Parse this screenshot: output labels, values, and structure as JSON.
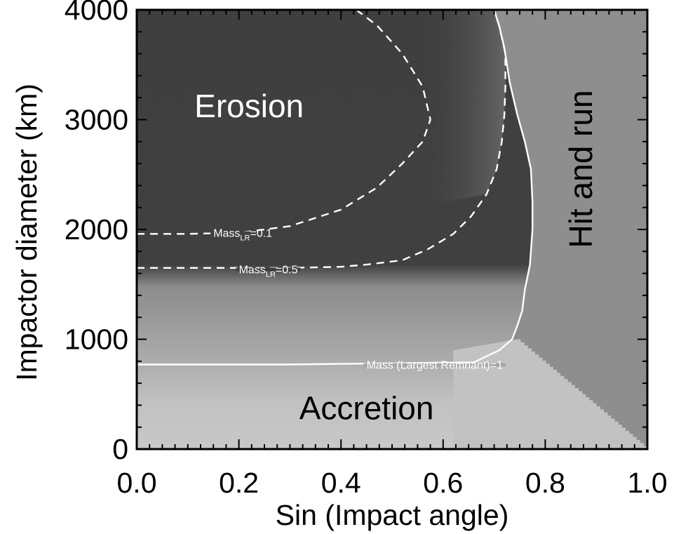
{
  "chart_data": {
    "type": "heatmap",
    "xlabel": "Sin (Impact angle)",
    "ylabel": "Impactor diameter (km)",
    "xlim": [
      0.0,
      1.0
    ],
    "ylim": [
      0,
      4000
    ],
    "xticks": [
      "0.0",
      "0.2",
      "0.4",
      "0.6",
      "0.8",
      "1.0"
    ],
    "yticks": [
      "0",
      "1000",
      "2000",
      "3000",
      "4000"
    ],
    "grid": false,
    "colors": {
      "erosion": "#3f3f3f",
      "accretion": "#c4c4c4",
      "hit_and_run": "#8e8e8e",
      "contour": "#ffffff"
    },
    "regions": [
      {
        "name": "Erosion",
        "x": 0.22,
        "y": 3100,
        "color": "#ffffff"
      },
      {
        "name": "Accretion",
        "x": 0.45,
        "y": 350,
        "color": "#000000"
      },
      {
        "name": "Hit and run",
        "x": 0.875,
        "y": 2550,
        "color": "#000000",
        "rotate": -90
      }
    ],
    "contours": [
      {
        "label_main": "Mass",
        "label_sub": "LR",
        "label_value": "=0.1",
        "style": "dashed",
        "label_at": [
          0.15,
          1970
        ],
        "points": [
          [
            0.0,
            1960
          ],
          [
            0.1,
            1960
          ],
          [
            0.2,
            1970
          ],
          [
            0.3,
            2030
          ],
          [
            0.4,
            2180
          ],
          [
            0.47,
            2380
          ],
          [
            0.52,
            2600
          ],
          [
            0.56,
            2800
          ],
          [
            0.575,
            3000
          ],
          [
            0.56,
            3300
          ],
          [
            0.52,
            3600
          ],
          [
            0.47,
            3860
          ],
          [
            0.43,
            4000
          ]
        ]
      },
      {
        "label_main": "Mass",
        "label_sub": "LR",
        "label_value": "=0.5",
        "style": "dashed",
        "label_at": [
          0.2,
          1640
        ],
        "points": [
          [
            0.0,
            1650
          ],
          [
            0.2,
            1650
          ],
          [
            0.3,
            1650
          ],
          [
            0.4,
            1660
          ],
          [
            0.45,
            1680
          ],
          [
            0.52,
            1720
          ],
          [
            0.57,
            1820
          ],
          [
            0.62,
            1960
          ],
          [
            0.655,
            2120
          ],
          [
            0.685,
            2320
          ],
          [
            0.705,
            2550
          ],
          [
            0.715,
            2800
          ],
          [
            0.72,
            3050
          ],
          [
            0.722,
            3300
          ],
          [
            0.722,
            3600
          ],
          [
            0.71,
            3850
          ],
          [
            0.7,
            4000
          ]
        ]
      },
      {
        "label_main": "Mass (Largest Remnant)=1",
        "label_sub": "",
        "label_value": "",
        "style": "solid",
        "label_at": [
          0.45,
          770
        ],
        "points": [
          [
            0.0,
            770
          ],
          [
            0.29,
            770
          ],
          [
            0.66,
            790
          ],
          [
            0.71,
            900
          ],
          [
            0.735,
            1000
          ],
          [
            0.745,
            1120
          ],
          [
            0.755,
            1260
          ],
          [
            0.76,
            1450
          ],
          [
            0.77,
            1680
          ],
          [
            0.775,
            2000
          ],
          [
            0.775,
            2250
          ],
          [
            0.772,
            2550
          ],
          [
            0.76,
            2800
          ],
          [
            0.745,
            3050
          ],
          [
            0.73,
            3350
          ],
          [
            0.72,
            3650
          ],
          [
            0.71,
            3850
          ],
          [
            0.7,
            4000
          ]
        ]
      }
    ]
  }
}
